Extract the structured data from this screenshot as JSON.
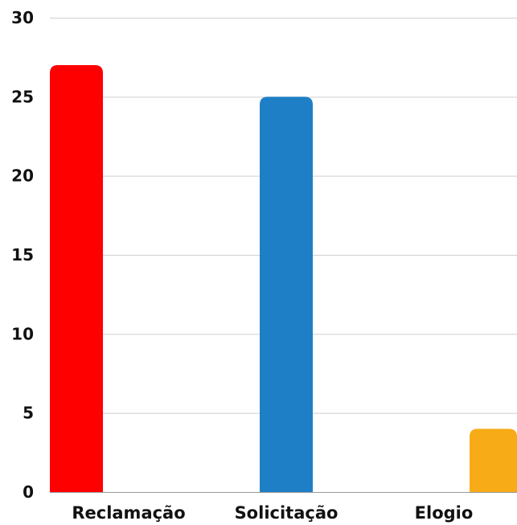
{
  "chart_data": {
    "type": "bar",
    "categories": [
      "Reclamação",
      "Solicitação",
      "Elogio"
    ],
    "values": [
      27,
      25,
      4
    ],
    "colors": [
      "#ff0000",
      "#1f7fc6",
      "#f7ab17"
    ],
    "ylim": [
      0,
      30
    ],
    "yticks": [
      0,
      5,
      10,
      15,
      20,
      25,
      30
    ],
    "ytick_labels": [
      "0",
      "5",
      "10",
      "15",
      "20",
      "25",
      "30"
    ],
    "grid": true,
    "legend": "none"
  }
}
